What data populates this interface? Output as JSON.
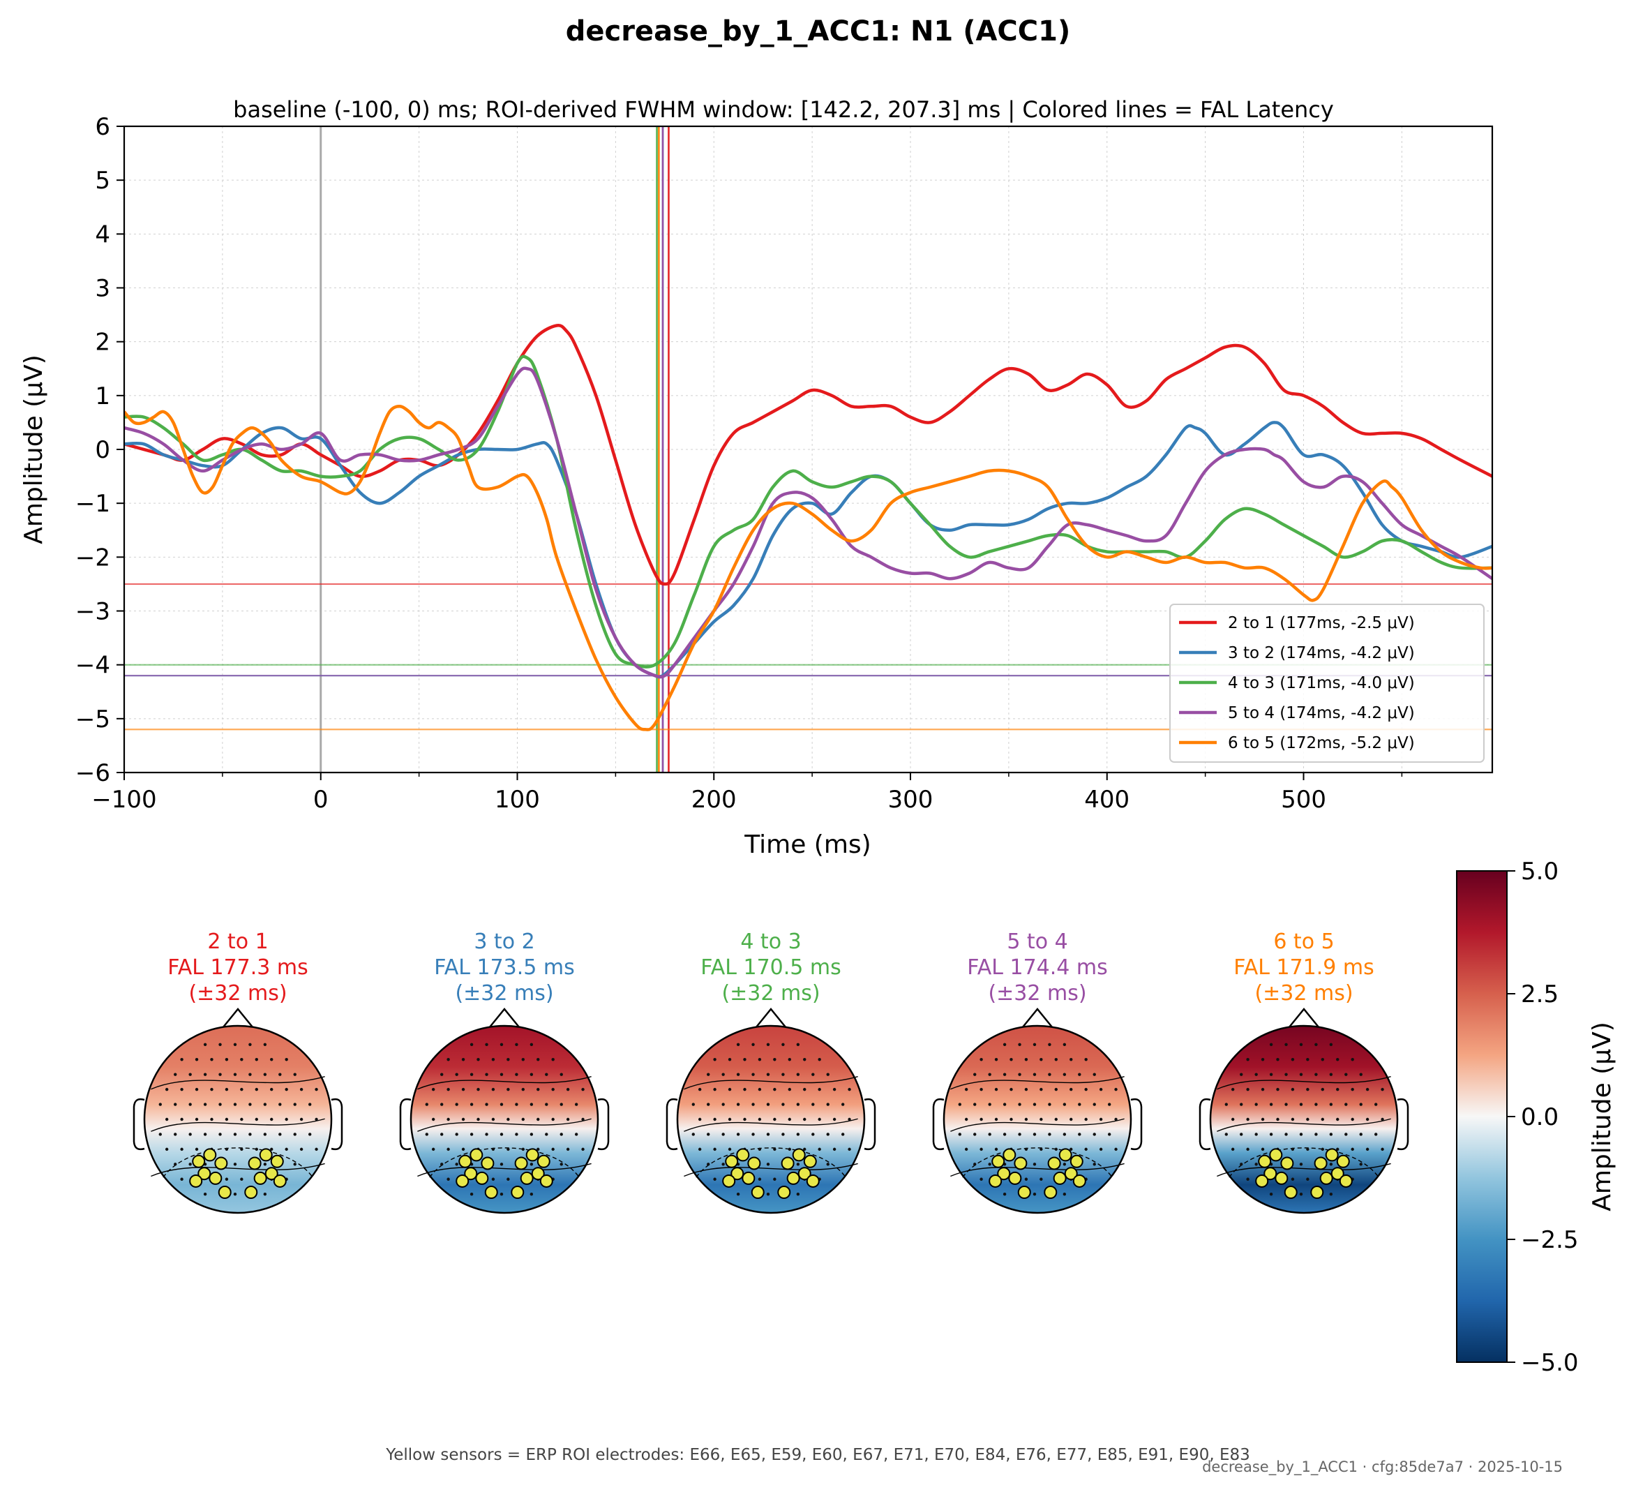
{
  "figure": {
    "title": "decrease_by_1_ACC1: N1 (ACC1)",
    "footnote": "Yellow sensors = ERP ROI electrodes: E66, E65, E59, E60, E67, E71, E70, E84, E76, E77, E85, E91, E90, E83",
    "stamp": "decrease_by_1_ACC1 · cfg:85de7a7 · 2025-10-15"
  },
  "chart_data": [
    {
      "type": "line",
      "title": "baseline (-100, 0) ms; ROI-derived FWHM window: [142.2, 207.3] ms | Colored lines = FAL Latency",
      "xlabel": "Time (ms)",
      "ylabel": "Amplitude (μV)",
      "xlim": [
        -100,
        596
      ],
      "ylim": [
        -6,
        6
      ],
      "xticks": [
        -100,
        0,
        100,
        200,
        300,
        400,
        500
      ],
      "xtick_labels": [
        "−100",
        "0",
        "100",
        "200",
        "300",
        "400",
        "500"
      ],
      "yticks": [
        -6,
        -5,
        -4,
        -3,
        -2,
        -1,
        0,
        1,
        2,
        3,
        4,
        5,
        6
      ],
      "ytick_labels": [
        "−6",
        "−5",
        "−4",
        "−3",
        "−2",
        "−1",
        "0",
        "1",
        "2",
        "3",
        "4",
        "5",
        "6"
      ],
      "grid": true,
      "legend_position": "bottom-right",
      "stimulus_onset_ms": 0,
      "series": [
        {
          "name": "2 to 1 (177ms, -2.5 μV)",
          "color": "#e41a1c",
          "fal_ms": 177,
          "fal_uv": -2.5,
          "x": [
            -100,
            -80,
            -70,
            -60,
            -50,
            -40,
            -30,
            -20,
            -10,
            0,
            10,
            20,
            30,
            40,
            50,
            60,
            70,
            80,
            90,
            100,
            110,
            120,
            125,
            130,
            140,
            150,
            160,
            170,
            175,
            180,
            190,
            200,
            210,
            220,
            230,
            240,
            250,
            260,
            270,
            280,
            290,
            300,
            310,
            320,
            330,
            340,
            350,
            360,
            370,
            380,
            390,
            400,
            410,
            420,
            430,
            440,
            450,
            460,
            470,
            480,
            490,
            500,
            510,
            520,
            530,
            540,
            550,
            560,
            570,
            580,
            596
          ],
          "y": [
            0.1,
            -0.1,
            -0.2,
            0,
            0.2,
            0.1,
            -0.1,
            -0.1,
            0.1,
            -0.1,
            -0.3,
            -0.5,
            -0.4,
            -0.2,
            -0.2,
            -0.3,
            -0.1,
            0.3,
            0.9,
            1.6,
            2.1,
            2.3,
            2.2,
            1.9,
            1.0,
            -0.2,
            -1.4,
            -2.3,
            -2.5,
            -2.3,
            -1.3,
            -0.3,
            0.3,
            0.5,
            0.7,
            0.9,
            1.1,
            1.0,
            0.8,
            0.8,
            0.8,
            0.6,
            0.5,
            0.7,
            1.0,
            1.3,
            1.5,
            1.4,
            1.1,
            1.2,
            1.4,
            1.2,
            0.8,
            0.9,
            1.3,
            1.5,
            1.7,
            1.9,
            1.9,
            1.6,
            1.1,
            1.0,
            0.8,
            0.5,
            0.3,
            0.3,
            0.3,
            0.2,
            0,
            -0.2,
            -0.5
          ]
        },
        {
          "name": "3 to 2 (174ms, -4.2 μV)",
          "color": "#377eb8",
          "fal_ms": 174,
          "fal_uv": -4.2,
          "x": [
            -100,
            -90,
            -80,
            -70,
            -60,
            -50,
            -40,
            -30,
            -20,
            -10,
            0,
            10,
            20,
            30,
            40,
            50,
            60,
            70,
            80,
            90,
            100,
            110,
            115,
            120,
            130,
            140,
            150,
            160,
            170,
            174,
            180,
            190,
            200,
            210,
            220,
            230,
            240,
            250,
            260,
            270,
            280,
            290,
            300,
            310,
            320,
            330,
            340,
            350,
            360,
            370,
            380,
            390,
            400,
            410,
            420,
            430,
            440,
            445,
            450,
            460,
            470,
            480,
            485,
            490,
            500,
            510,
            520,
            530,
            540,
            550,
            560,
            570,
            580,
            596
          ],
          "y": [
            0.1,
            0.1,
            -0.1,
            -0.2,
            -0.3,
            -0.3,
            0,
            0.3,
            0.4,
            0.2,
            0.2,
            -0.3,
            -0.8,
            -1.0,
            -0.8,
            -0.5,
            -0.3,
            -0.1,
            0,
            0,
            0,
            0.1,
            0.1,
            -0.2,
            -1.2,
            -2.5,
            -3.5,
            -4.0,
            -4.2,
            -4.2,
            -4.0,
            -3.6,
            -3.2,
            -2.9,
            -2.4,
            -1.6,
            -1.1,
            -1.0,
            -1.2,
            -0.8,
            -0.5,
            -0.6,
            -1.0,
            -1.4,
            -1.5,
            -1.4,
            -1.4,
            -1.4,
            -1.3,
            -1.1,
            -1.0,
            -1.0,
            -0.9,
            -0.7,
            -0.5,
            -0.1,
            0.4,
            0.4,
            0.3,
            -0.1,
            0.1,
            0.4,
            0.5,
            0.4,
            -0.1,
            -0.1,
            -0.3,
            -0.8,
            -1.4,
            -1.7,
            -1.8,
            -1.9,
            -2.0,
            -1.8
          ]
        },
        {
          "name": "4 to 3 (171ms, -4.0 μV)",
          "color": "#4daf4a",
          "fal_ms": 171,
          "fal_uv": -4.0,
          "x": [
            -100,
            -90,
            -80,
            -70,
            -60,
            -50,
            -40,
            -30,
            -20,
            -10,
            0,
            10,
            20,
            30,
            40,
            50,
            60,
            70,
            80,
            90,
            100,
            105,
            110,
            120,
            130,
            140,
            150,
            160,
            170,
            180,
            190,
            200,
            210,
            220,
            230,
            240,
            250,
            260,
            270,
            280,
            290,
            300,
            310,
            320,
            330,
            340,
            350,
            360,
            370,
            380,
            390,
            400,
            410,
            420,
            430,
            440,
            450,
            460,
            470,
            480,
            490,
            500,
            510,
            520,
            530,
            540,
            550,
            560,
            570,
            580,
            596
          ],
          "y": [
            0.6,
            0.6,
            0.4,
            0.1,
            -0.2,
            -0.1,
            0,
            -0.2,
            -0.4,
            -0.4,
            -0.5,
            -0.5,
            -0.4,
            0,
            0.2,
            0.2,
            0,
            -0.2,
            0,
            0.7,
            1.6,
            1.7,
            1.4,
            0.2,
            -1.5,
            -2.9,
            -3.8,
            -4.0,
            -4.0,
            -3.6,
            -2.7,
            -1.8,
            -1.5,
            -1.3,
            -0.7,
            -0.4,
            -0.6,
            -0.7,
            -0.6,
            -0.5,
            -0.6,
            -1.0,
            -1.4,
            -1.8,
            -2.0,
            -1.9,
            -1.8,
            -1.7,
            -1.6,
            -1.6,
            -1.8,
            -1.9,
            -1.9,
            -1.9,
            -1.9,
            -2.0,
            -1.7,
            -1.3,
            -1.1,
            -1.2,
            -1.4,
            -1.6,
            -1.8,
            -2.0,
            -1.9,
            -1.7,
            -1.7,
            -1.9,
            -2.1,
            -2.2,
            -2.2
          ]
        },
        {
          "name": "5 to 4 (174ms, -4.2 μV)",
          "color": "#984ea3",
          "fal_ms": 174,
          "fal_uv": -4.2,
          "x": [
            -100,
            -90,
            -80,
            -70,
            -60,
            -50,
            -40,
            -30,
            -20,
            -10,
            0,
            10,
            20,
            30,
            40,
            50,
            60,
            70,
            80,
            90,
            100,
            105,
            110,
            120,
            130,
            140,
            150,
            160,
            170,
            175,
            180,
            190,
            200,
            210,
            220,
            230,
            240,
            250,
            260,
            270,
            280,
            290,
            300,
            310,
            320,
            330,
            340,
            350,
            360,
            370,
            380,
            390,
            400,
            410,
            420,
            430,
            440,
            450,
            460,
            470,
            480,
            485,
            490,
            500,
            510,
            520,
            530,
            540,
            550,
            560,
            570,
            580,
            596
          ],
          "y": [
            0.4,
            0.3,
            0.1,
            -0.2,
            -0.4,
            -0.2,
            0,
            0.1,
            0,
            0.1,
            0.3,
            -0.2,
            -0.1,
            -0.1,
            -0.2,
            -0.2,
            -0.1,
            0,
            0.2,
            0.8,
            1.4,
            1.5,
            1.3,
            0.2,
            -1.2,
            -2.6,
            -3.5,
            -4.0,
            -4.2,
            -4.2,
            -4.0,
            -3.5,
            -3.0,
            -2.5,
            -1.8,
            -1.0,
            -0.8,
            -0.9,
            -1.3,
            -1.8,
            -2.0,
            -2.2,
            -2.3,
            -2.3,
            -2.4,
            -2.3,
            -2.1,
            -2.2,
            -2.2,
            -1.8,
            -1.4,
            -1.4,
            -1.5,
            -1.6,
            -1.7,
            -1.6,
            -1.0,
            -0.4,
            -0.1,
            0,
            0,
            -0.1,
            -0.2,
            -0.6,
            -0.7,
            -0.5,
            -0.6,
            -1.0,
            -1.4,
            -1.6,
            -1.8,
            -2.0,
            -2.4
          ]
        },
        {
          "name": "6 to 5 (172ms, -5.2 μV)",
          "color": "#ff7f00",
          "fal_ms": 172,
          "fal_uv": -5.2,
          "x": [
            -100,
            -95,
            -90,
            -85,
            -80,
            -75,
            -70,
            -65,
            -60,
            -55,
            -50,
            -45,
            -40,
            -35,
            -30,
            -25,
            -20,
            -10,
            0,
            10,
            15,
            20,
            25,
            30,
            35,
            40,
            45,
            50,
            55,
            60,
            65,
            70,
            75,
            80,
            90,
            100,
            105,
            110,
            115,
            120,
            130,
            140,
            150,
            160,
            165,
            170,
            180,
            190,
            200,
            210,
            220,
            230,
            240,
            250,
            260,
            270,
            280,
            290,
            300,
            310,
            320,
            330,
            340,
            350,
            360,
            370,
            380,
            390,
            400,
            410,
            420,
            430,
            440,
            450,
            460,
            470,
            480,
            490,
            500,
            505,
            510,
            520,
            530,
            540,
            545,
            550,
            560,
            570,
            580,
            590,
            596
          ],
          "y": [
            0.7,
            0.5,
            0.5,
            0.6,
            0.7,
            0.5,
            0,
            -0.5,
            -0.8,
            -0.7,
            -0.3,
            0.1,
            0.3,
            0.4,
            0.3,
            0.1,
            -0.2,
            -0.5,
            -0.6,
            -0.8,
            -0.8,
            -0.6,
            -0.2,
            0.3,
            0.7,
            0.8,
            0.7,
            0.5,
            0.4,
            0.5,
            0.4,
            0.2,
            -0.3,
            -0.7,
            -0.7,
            -0.5,
            -0.5,
            -0.8,
            -1.3,
            -2.0,
            -3.0,
            -3.9,
            -4.6,
            -5.1,
            -5.2,
            -5.1,
            -4.4,
            -3.6,
            -3.0,
            -2.2,
            -1.5,
            -1.1,
            -1.0,
            -1.2,
            -1.5,
            -1.7,
            -1.5,
            -1.0,
            -0.8,
            -0.7,
            -0.6,
            -0.5,
            -0.4,
            -0.4,
            -0.5,
            -0.7,
            -1.3,
            -1.8,
            -2.0,
            -1.9,
            -2.0,
            -2.1,
            -2.0,
            -2.1,
            -2.1,
            -2.2,
            -2.2,
            -2.4,
            -2.7,
            -2.8,
            -2.6,
            -1.8,
            -1.0,
            -0.6,
            -0.7,
            -0.9,
            -1.5,
            -1.9,
            -2.1,
            -2.2,
            -2.2
          ]
        }
      ]
    },
    {
      "type": "heatmap",
      "colorbar": {
        "label": "Amplitude (μV)",
        "ticks": [
          5.0,
          2.5,
          0.0,
          -2.5,
          -5.0
        ],
        "tick_labels": [
          "5.0",
          "2.5",
          "0.0",
          "−2.5",
          "−5.0"
        ],
        "vmin": -5.0,
        "vmax": 5.0,
        "colormap": "RdBu_r"
      },
      "topomaps": [
        {
          "line1": "2 to 1",
          "line2": "FAL 177.3 ms",
          "line3": "(±32 ms)",
          "color": "#e41a1c",
          "frontal": 0.45,
          "posterior": -0.35
        },
        {
          "line1": "3 to 2",
          "line2": "FAL 173.5 ms",
          "line3": "(±32 ms)",
          "color": "#377eb8",
          "frontal": 0.8,
          "posterior": -0.7
        },
        {
          "line1": "4 to 3",
          "line2": "FAL 170.5 ms",
          "line3": "(±32 ms)",
          "color": "#4daf4a",
          "frontal": 0.6,
          "posterior": -0.7
        },
        {
          "line1": "5 to 4",
          "line2": "FAL 174.4 ms",
          "line3": "(±32 ms)",
          "color": "#984ea3",
          "frontal": 0.55,
          "posterior": -0.7
        },
        {
          "line1": "6 to 5",
          "line2": "FAL 171.9 ms",
          "line3": "(±32 ms)",
          "color": "#ff7f00",
          "frontal": 0.95,
          "posterior": -0.95
        }
      ]
    }
  ]
}
